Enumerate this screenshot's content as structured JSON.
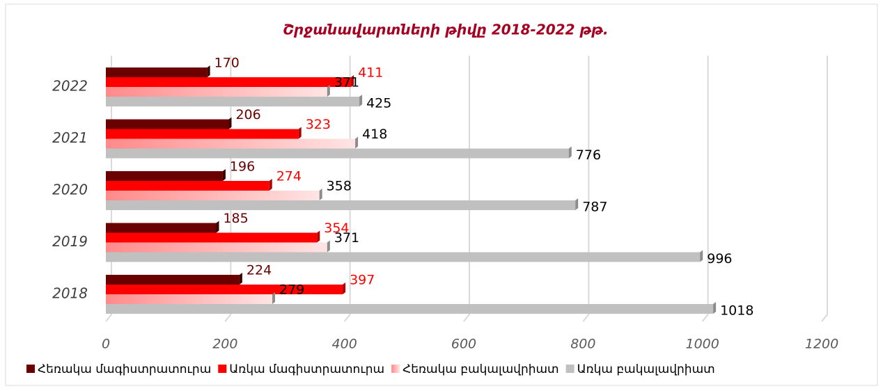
{
  "chart_data": {
    "type": "bar",
    "orientation": "horizontal",
    "title": "Շրջանավարտների թիվը 2018-2022 թթ.",
    "categories": [
      "2018",
      "2019",
      "2020",
      "2021",
      "2022"
    ],
    "series": [
      {
        "name": "Հեռակա մագիստրատուրա",
        "color": "#6b0000",
        "values": [
          224,
          185,
          196,
          206,
          170
        ]
      },
      {
        "name": "Առկա մագիստրատուրա",
        "color": "#ff0000",
        "values": [
          397,
          354,
          274,
          323,
          411
        ]
      },
      {
        "name": "Հեռակա բակալավրիատ",
        "color": "#ff8a8a",
        "values": [
          279,
          371,
          358,
          418,
          371
        ]
      },
      {
        "name": "Առկա բակալավրիատ",
        "color": "#c0c0c0",
        "values": [
          1018,
          996,
          787,
          776,
          425
        ]
      }
    ],
    "xlim": [
      0,
      1200
    ],
    "xticks": [
      0,
      200,
      400,
      600,
      800,
      1000,
      1200
    ],
    "grid": true,
    "legend": "bottom"
  }
}
